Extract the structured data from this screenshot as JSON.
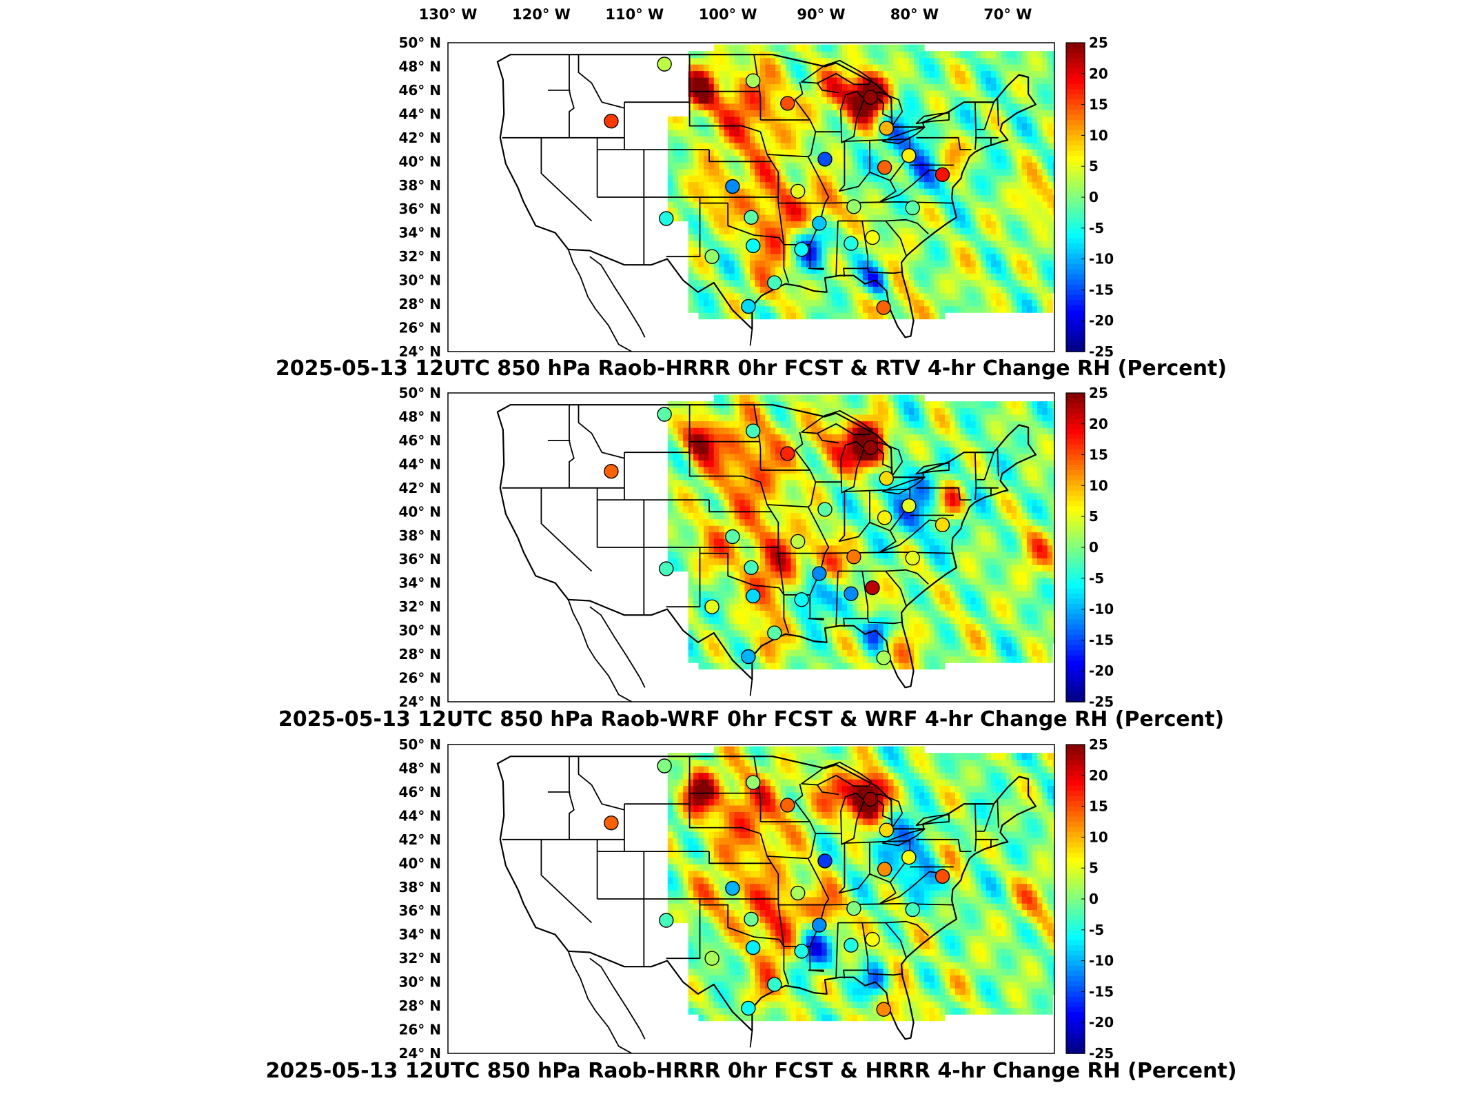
{
  "top_longitude_labels": [
    "130° W",
    "120° W",
    "110° W",
    "100° W",
    "90° W",
    "80° W",
    "70° W"
  ],
  "latitude_labels": [
    "50° N",
    "48° N",
    "46° N",
    "44° N",
    "42° N",
    "40° N",
    "38° N",
    "36° N",
    "34° N",
    "32° N",
    "30° N",
    "28° N",
    "26° N",
    "24° N"
  ],
  "colorbar": {
    "ticks": [
      "25",
      "20",
      "15",
      "10",
      "5",
      "0",
      "-5",
      "-10",
      "-15",
      "-20",
      "-25"
    ],
    "range": [
      -25,
      25
    ],
    "colormap": "jet",
    "colors": [
      "#00007f",
      "#0000ff",
      "#007fff",
      "#00ffff",
      "#7fff7f",
      "#ffff00",
      "#ff7f00",
      "#ff0000",
      "#7f0000"
    ]
  },
  "panels": [
    {
      "title": "2025-05-13 12UTC 850 hPa Raob-HRRR 0hr FCST & RTV 4-hr Change RH (Percent)"
    },
    {
      "title": "2025-05-13 12UTC 850 hPa Raob-WRF 0hr FCST & WRF 4-hr Change RH (Percent)"
    },
    {
      "title": "2025-05-13 12UTC 850 hPa Raob-HRRR 0hr FCST & HRRR 4-hr Change RH (Percent)"
    }
  ],
  "chart_data": {
    "type": "heatmap",
    "variable": "RH (Percent)",
    "level": "850 hPa",
    "valid": "2025-05-13 12UTC",
    "lon_range": [
      -130,
      -65
    ],
    "lat_range": [
      24,
      50
    ],
    "value_range": [
      -25,
      25
    ],
    "stations": [
      {
        "lon": -106.8,
        "lat": 48.2,
        "v": [
          3,
          -2,
          0
        ]
      },
      {
        "lon": -97.3,
        "lat": 46.8,
        "v": [
          2,
          -3,
          1
        ]
      },
      {
        "lon": -112.5,
        "lat": 43.4,
        "v": [
          16,
          14,
          14
        ]
      },
      {
        "lon": -93.6,
        "lat": 44.9,
        "v": [
          15,
          17,
          14
        ]
      },
      {
        "lon": -84.7,
        "lat": 45.4,
        "v": [
          24,
          24,
          24
        ]
      },
      {
        "lon": -83.0,
        "lat": 42.8,
        "v": [
          10,
          8,
          8
        ]
      },
      {
        "lon": -89.6,
        "lat": 40.2,
        "v": [
          -15,
          -2,
          -16
        ]
      },
      {
        "lon": -83.2,
        "lat": 39.5,
        "v": [
          14,
          7,
          12
        ]
      },
      {
        "lon": -99.5,
        "lat": 37.9,
        "v": [
          -12,
          -2,
          -10
        ]
      },
      {
        "lon": -92.5,
        "lat": 37.5,
        "v": [
          5,
          3,
          2
        ]
      },
      {
        "lon": -106.6,
        "lat": 35.2,
        "v": [
          -5,
          -3,
          -3
        ]
      },
      {
        "lon": -97.5,
        "lat": 35.3,
        "v": [
          -2,
          -3,
          -1
        ]
      },
      {
        "lon": -90.2,
        "lat": 34.8,
        "v": [
          -9,
          -12,
          -12
        ]
      },
      {
        "lon": -86.5,
        "lat": 36.2,
        "v": [
          1,
          13,
          0
        ]
      },
      {
        "lon": -97.3,
        "lat": 32.9,
        "v": [
          -6,
          -8,
          -7
        ]
      },
      {
        "lon": -101.7,
        "lat": 32.0,
        "v": [
          1,
          5,
          2
        ]
      },
      {
        "lon": -92.1,
        "lat": 32.6,
        "v": [
          -6,
          -6,
          -5
        ]
      },
      {
        "lon": -86.8,
        "lat": 33.1,
        "v": [
          -5,
          -12,
          -5
        ]
      },
      {
        "lon": -84.5,
        "lat": 33.6,
        "v": [
          6,
          22,
          6
        ]
      },
      {
        "lon": -80.2,
        "lat": 36.1,
        "v": [
          -2,
          5,
          -3
        ]
      },
      {
        "lon": -77.0,
        "lat": 38.9,
        "v": [
          18,
          8,
          15
        ]
      },
      {
        "lon": -80.6,
        "lat": 40.5,
        "v": [
          7,
          5,
          6
        ]
      },
      {
        "lon": -97.8,
        "lat": 27.8,
        "v": [
          -8,
          -10,
          -6
        ]
      },
      {
        "lon": -83.3,
        "lat": 27.7,
        "v": [
          14,
          2,
          12
        ]
      },
      {
        "lon": -95.0,
        "lat": 29.8,
        "v": [
          -3,
          -2,
          -4
        ]
      }
    ]
  }
}
